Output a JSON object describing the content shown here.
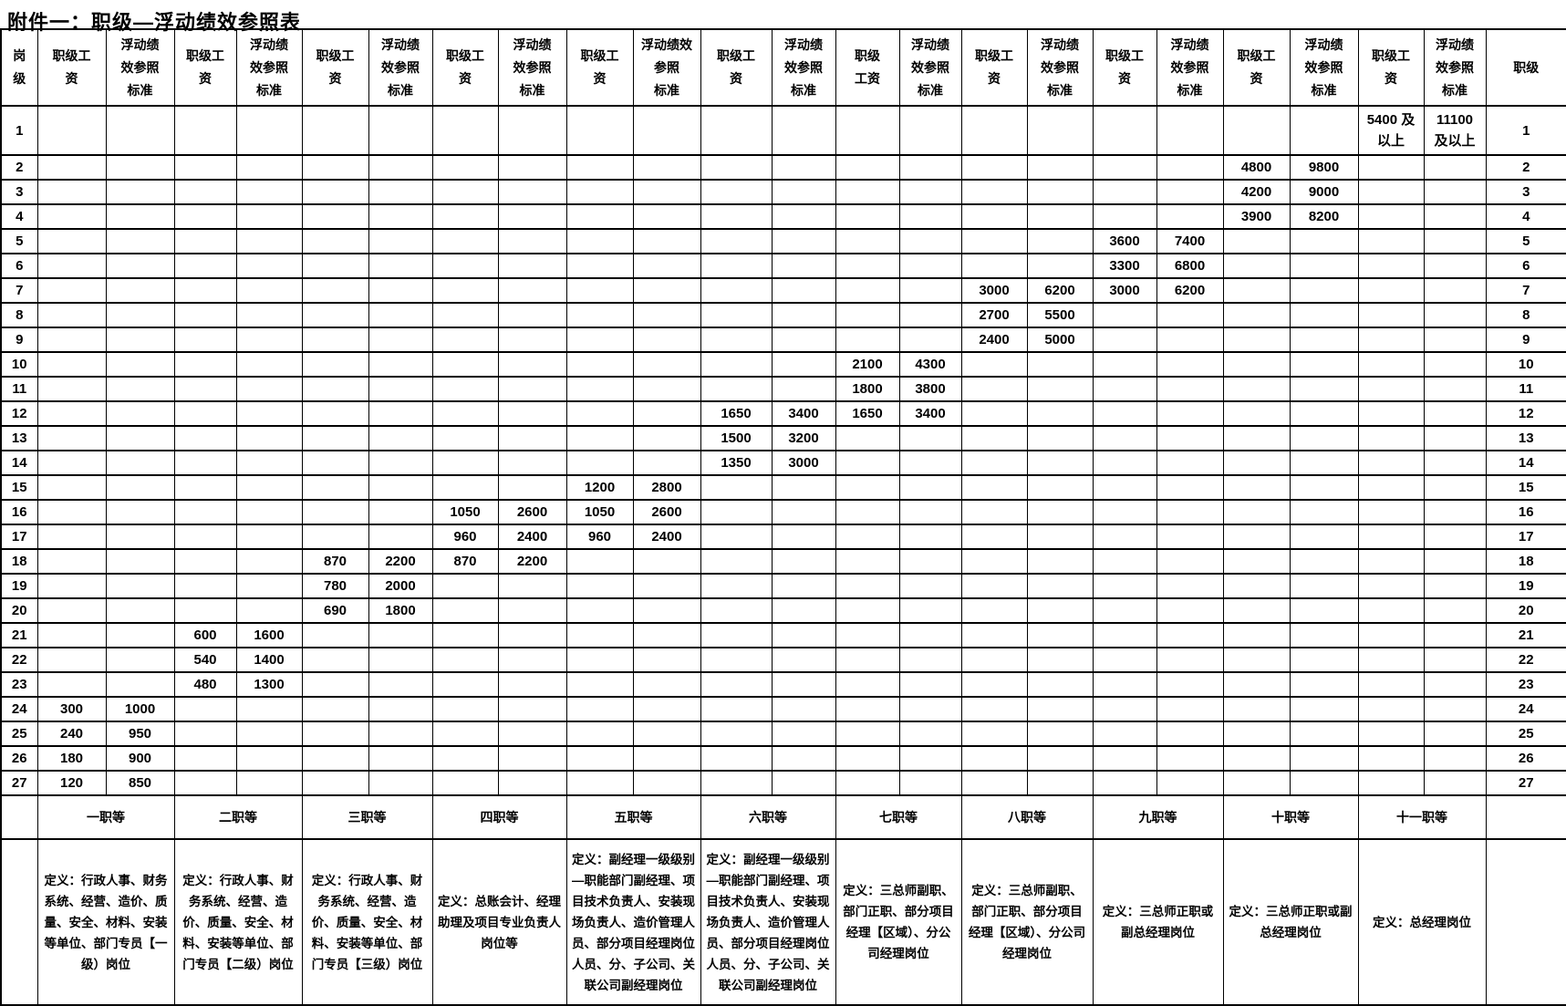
{
  "title": "附件一：职级—浮动绩效参照表",
  "table": {
    "header": {
      "level": "岗\n级",
      "rank": "职级",
      "pairs": [
        {
          "salary": "职级工\n资",
          "perf": "浮动绩\n效参照\n标准"
        },
        {
          "salary": "职级工\n资",
          "perf": "浮动绩\n效参照\n标准"
        },
        {
          "salary": "职级工\n资",
          "perf": "浮动绩\n效参照\n标准"
        },
        {
          "salary": "职级工\n资",
          "perf": "浮动绩\n效参照\n标准"
        },
        {
          "salary": "职级工\n资",
          "perf": "浮动绩效\n参照\n标准"
        },
        {
          "salary": "职级工\n资",
          "perf": "浮动绩\n效参照\n标准"
        },
        {
          "salary": "职级\n工资",
          "perf": "浮动绩\n效参照\n标准"
        },
        {
          "salary": "职级工\n资",
          "perf": "浮动绩\n效参照\n标准"
        },
        {
          "salary": "职级工\n资",
          "perf": "浮动绩\n效参照\n标准"
        },
        {
          "salary": "职级工\n资",
          "perf": "浮动绩\n效参照\n标准"
        },
        {
          "salary": "职级工\n资",
          "perf": "浮动绩\n效参照\n标准"
        }
      ]
    },
    "rows": [
      {
        "level": "1",
        "rank": "1",
        "pairs": {
          "11": [
            "5400 及\n以上",
            "11100\n及以上"
          ]
        }
      },
      {
        "level": "2",
        "rank": "2",
        "pairs": {
          "10": [
            "4800",
            "9800"
          ]
        }
      },
      {
        "level": "3",
        "rank": "3",
        "pairs": {
          "10": [
            "4200",
            "9000"
          ]
        }
      },
      {
        "level": "4",
        "rank": "4",
        "pairs": {
          "10": [
            "3900",
            "8200"
          ]
        }
      },
      {
        "level": "5",
        "rank": "5",
        "pairs": {
          "9": [
            "3600",
            "7400"
          ]
        }
      },
      {
        "level": "6",
        "rank": "6",
        "pairs": {
          "9": [
            "3300",
            "6800"
          ]
        }
      },
      {
        "level": "7",
        "rank": "7",
        "pairs": {
          "8": [
            "3000",
            "6200"
          ],
          "9": [
            "3000",
            "6200"
          ]
        }
      },
      {
        "level": "8",
        "rank": "8",
        "pairs": {
          "8": [
            "2700",
            "5500"
          ]
        }
      },
      {
        "level": "9",
        "rank": "9",
        "pairs": {
          "8": [
            "2400",
            "5000"
          ]
        }
      },
      {
        "level": "10",
        "rank": "10",
        "pairs": {
          "7": [
            "2100",
            "4300"
          ]
        }
      },
      {
        "level": "11",
        "rank": "11",
        "pairs": {
          "7": [
            "1800",
            "3800"
          ]
        }
      },
      {
        "level": "12",
        "rank": "12",
        "pairs": {
          "6": [
            "1650",
            "3400"
          ],
          "7": [
            "1650",
            "3400"
          ]
        }
      },
      {
        "level": "13",
        "rank": "13",
        "pairs": {
          "6": [
            "1500",
            "3200"
          ]
        }
      },
      {
        "level": "14",
        "rank": "14",
        "pairs": {
          "6": [
            "1350",
            "3000"
          ]
        }
      },
      {
        "level": "15",
        "rank": "15",
        "pairs": {
          "5": [
            "1200",
            "2800"
          ]
        }
      },
      {
        "level": "16",
        "rank": "16",
        "pairs": {
          "4": [
            "1050",
            "2600"
          ],
          "5": [
            "1050",
            "2600"
          ]
        }
      },
      {
        "level": "17",
        "rank": "17",
        "pairs": {
          "4": [
            "960",
            "2400"
          ],
          "5": [
            "960",
            "2400"
          ]
        }
      },
      {
        "level": "18",
        "rank": "18",
        "pairs": {
          "3": [
            "870",
            "2200"
          ],
          "4": [
            "870",
            "2200"
          ]
        }
      },
      {
        "level": "19",
        "rank": "19",
        "pairs": {
          "3": [
            "780",
            "2000"
          ]
        }
      },
      {
        "level": "20",
        "rank": "20",
        "pairs": {
          "3": [
            "690",
            "1800"
          ]
        }
      },
      {
        "level": "21",
        "rank": "21",
        "pairs": {
          "2": [
            "600",
            "1600"
          ]
        }
      },
      {
        "level": "22",
        "rank": "22",
        "pairs": {
          "2": [
            "540",
            "1400"
          ]
        }
      },
      {
        "level": "23",
        "rank": "23",
        "pairs": {
          "2": [
            "480",
            "1300"
          ]
        }
      },
      {
        "level": "24",
        "rank": "24",
        "pairs": {
          "1": [
            "300",
            "1000"
          ]
        }
      },
      {
        "level": "25",
        "rank": "25",
        "pairs": {
          "1": [
            "240",
            "950"
          ]
        }
      },
      {
        "level": "26",
        "rank": "26",
        "pairs": {
          "1": [
            "180",
            "900"
          ]
        }
      },
      {
        "level": "27",
        "rank": "27",
        "pairs": {
          "1": [
            "120",
            "850"
          ]
        }
      }
    ],
    "grades": [
      "一职等",
      "二职等",
      "三职等",
      "四职等",
      "五职等",
      "六职等",
      "七职等",
      "八职等",
      "九职等",
      "十职等",
      "十一职等"
    ],
    "definitions": [
      "定义：行政人事、财务系统、经营、造价、质量、安全、材料、安装等单位、部门专员【一级）岗位",
      "定义：行政人事、财务系统、经营、造价、质量、安全、材料、安装等单位、部门专员【二级）岗位",
      "定义：行政人事、财务系统、经营、造价、质量、安全、材料、安装等单位、部门专员【三级）岗位",
      "定义：总账会计、经理助理及项目专业负责人岗位等",
      "定义：副经理一级级别—职能部门副经理、项目技术负责人、安装现场负责人、造价管理人员、部分项目经理岗位人员、分、子公司、关联公司副经理岗位",
      "定义：副经理一级级别—职能部门副经理、项目技术负责人、安装现场负责人、造价管理人员、部分项目经理岗位人员、分、子公司、关联公司副经理岗位",
      "定义：三总师副职、部门正职、部分项目经理【区域）、分公司经理岗位",
      "定义：三总师副职、部门正职、部分项目经理【区域）、分公司经理岗位",
      "定义：三总师正职或副总经理岗位",
      "定义：三总师正职或副总经理岗位",
      "定义：总经理岗位"
    ]
  }
}
